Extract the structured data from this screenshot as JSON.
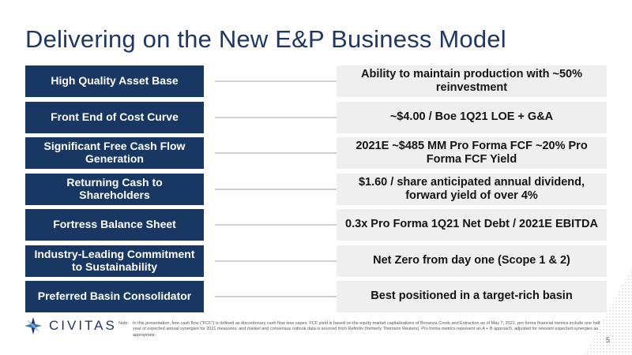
{
  "slide": {
    "title": "Delivering on the New E&P Business Model",
    "page_number": "5"
  },
  "rows": [
    {
      "left": "High Quality Asset Base",
      "right": "Ability to maintain production with ~50% reinvestment"
    },
    {
      "left": "Front End of Cost Curve",
      "right": "~$4.00 / Boe 1Q21 LOE + G&A"
    },
    {
      "left": "Significant Free Cash Flow Generation",
      "right": "2021E ~$485 MM Pro Forma FCF ~20% Pro Forma FCF Yield"
    },
    {
      "left": "Returning Cash to Shareholders",
      "right": "$1.60 / share anticipated annual dividend, forward yield of over 4%"
    },
    {
      "left": "Fortress Balance Sheet",
      "right": "0.3x Pro Forma 1Q21 Net Debt / 2021E EBITDA"
    },
    {
      "left": "Industry-Leading Commitment to Sustainability",
      "right": "Net Zero from day one (Scope 1 & 2)"
    },
    {
      "left": "Preferred Basin Consolidator",
      "right": "Best positioned in a target-rich basin"
    }
  ],
  "footer": {
    "logo_text": "CIVITAS",
    "note_label": "Note:",
    "note_text": "In this presentation, free cash flow (\"FCF\") is defined as discretionary cash flow less capex. FCF yield is based on the equity market capitalizations of Bonanza Creek and Extraction as of May 7, 2021. pro forma financial metrics include one half year of expected annual synergies for 2021 measures, and market and consensus outlook data is sourced from Refinitiv (formerly Thomson Reuters). Pro forma metrics represent an A + B approach, adjusted for relevant expected synergies as appropriate."
  },
  "colors": {
    "navy": "#183863",
    "title": "#1f3763",
    "light_box": "#efefef",
    "arrow": "#9aa4b2"
  }
}
